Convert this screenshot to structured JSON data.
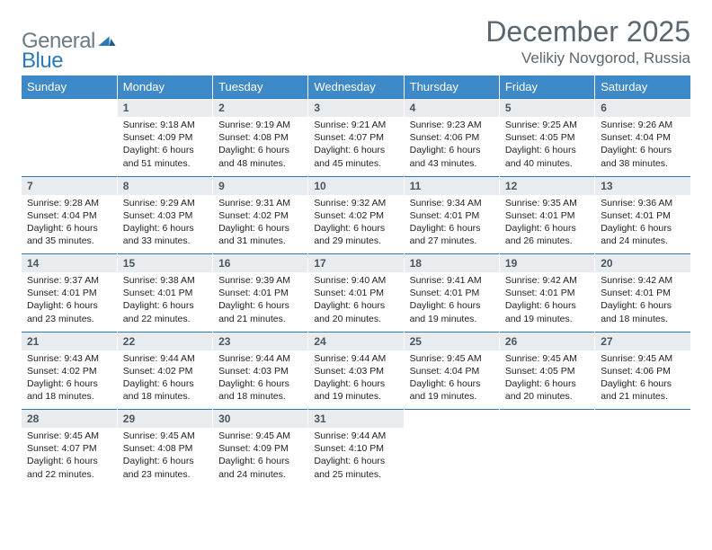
{
  "brand": {
    "general": "General",
    "blue": "Blue"
  },
  "title": "December 2025",
  "location": "Velikiy Novgorod, Russia",
  "colors": {
    "header_bg": "#3e8ac8",
    "header_text": "#ffffff",
    "rule": "#2a7ab9",
    "daynum_bg": "#e9ecef",
    "body_text": "#222222",
    "title_text": "#5a6670",
    "logo_gray": "#6b7a85",
    "logo_blue": "#2a7ab9"
  },
  "weekdays": [
    "Sunday",
    "Monday",
    "Tuesday",
    "Wednesday",
    "Thursday",
    "Friday",
    "Saturday"
  ],
  "weeks": [
    {
      "nums": [
        "",
        "1",
        "2",
        "3",
        "4",
        "5",
        "6"
      ],
      "cells": [
        null,
        {
          "sunrise": "Sunrise: 9:18 AM",
          "sunset": "Sunset: 4:09 PM",
          "d1": "Daylight: 6 hours",
          "d2": "and 51 minutes."
        },
        {
          "sunrise": "Sunrise: 9:19 AM",
          "sunset": "Sunset: 4:08 PM",
          "d1": "Daylight: 6 hours",
          "d2": "and 48 minutes."
        },
        {
          "sunrise": "Sunrise: 9:21 AM",
          "sunset": "Sunset: 4:07 PM",
          "d1": "Daylight: 6 hours",
          "d2": "and 45 minutes."
        },
        {
          "sunrise": "Sunrise: 9:23 AM",
          "sunset": "Sunset: 4:06 PM",
          "d1": "Daylight: 6 hours",
          "d2": "and 43 minutes."
        },
        {
          "sunrise": "Sunrise: 9:25 AM",
          "sunset": "Sunset: 4:05 PM",
          "d1": "Daylight: 6 hours",
          "d2": "and 40 minutes."
        },
        {
          "sunrise": "Sunrise: 9:26 AM",
          "sunset": "Sunset: 4:04 PM",
          "d1": "Daylight: 6 hours",
          "d2": "and 38 minutes."
        }
      ]
    },
    {
      "nums": [
        "7",
        "8",
        "9",
        "10",
        "11",
        "12",
        "13"
      ],
      "cells": [
        {
          "sunrise": "Sunrise: 9:28 AM",
          "sunset": "Sunset: 4:04 PM",
          "d1": "Daylight: 6 hours",
          "d2": "and 35 minutes."
        },
        {
          "sunrise": "Sunrise: 9:29 AM",
          "sunset": "Sunset: 4:03 PM",
          "d1": "Daylight: 6 hours",
          "d2": "and 33 minutes."
        },
        {
          "sunrise": "Sunrise: 9:31 AM",
          "sunset": "Sunset: 4:02 PM",
          "d1": "Daylight: 6 hours",
          "d2": "and 31 minutes."
        },
        {
          "sunrise": "Sunrise: 9:32 AM",
          "sunset": "Sunset: 4:02 PM",
          "d1": "Daylight: 6 hours",
          "d2": "and 29 minutes."
        },
        {
          "sunrise": "Sunrise: 9:34 AM",
          "sunset": "Sunset: 4:01 PM",
          "d1": "Daylight: 6 hours",
          "d2": "and 27 minutes."
        },
        {
          "sunrise": "Sunrise: 9:35 AM",
          "sunset": "Sunset: 4:01 PM",
          "d1": "Daylight: 6 hours",
          "d2": "and 26 minutes."
        },
        {
          "sunrise": "Sunrise: 9:36 AM",
          "sunset": "Sunset: 4:01 PM",
          "d1": "Daylight: 6 hours",
          "d2": "and 24 minutes."
        }
      ]
    },
    {
      "nums": [
        "14",
        "15",
        "16",
        "17",
        "18",
        "19",
        "20"
      ],
      "cells": [
        {
          "sunrise": "Sunrise: 9:37 AM",
          "sunset": "Sunset: 4:01 PM",
          "d1": "Daylight: 6 hours",
          "d2": "and 23 minutes."
        },
        {
          "sunrise": "Sunrise: 9:38 AM",
          "sunset": "Sunset: 4:01 PM",
          "d1": "Daylight: 6 hours",
          "d2": "and 22 minutes."
        },
        {
          "sunrise": "Sunrise: 9:39 AM",
          "sunset": "Sunset: 4:01 PM",
          "d1": "Daylight: 6 hours",
          "d2": "and 21 minutes."
        },
        {
          "sunrise": "Sunrise: 9:40 AM",
          "sunset": "Sunset: 4:01 PM",
          "d1": "Daylight: 6 hours",
          "d2": "and 20 minutes."
        },
        {
          "sunrise": "Sunrise: 9:41 AM",
          "sunset": "Sunset: 4:01 PM",
          "d1": "Daylight: 6 hours",
          "d2": "and 19 minutes."
        },
        {
          "sunrise": "Sunrise: 9:42 AM",
          "sunset": "Sunset: 4:01 PM",
          "d1": "Daylight: 6 hours",
          "d2": "and 19 minutes."
        },
        {
          "sunrise": "Sunrise: 9:42 AM",
          "sunset": "Sunset: 4:01 PM",
          "d1": "Daylight: 6 hours",
          "d2": "and 18 minutes."
        }
      ]
    },
    {
      "nums": [
        "21",
        "22",
        "23",
        "24",
        "25",
        "26",
        "27"
      ],
      "cells": [
        {
          "sunrise": "Sunrise: 9:43 AM",
          "sunset": "Sunset: 4:02 PM",
          "d1": "Daylight: 6 hours",
          "d2": "and 18 minutes."
        },
        {
          "sunrise": "Sunrise: 9:44 AM",
          "sunset": "Sunset: 4:02 PM",
          "d1": "Daylight: 6 hours",
          "d2": "and 18 minutes."
        },
        {
          "sunrise": "Sunrise: 9:44 AM",
          "sunset": "Sunset: 4:03 PM",
          "d1": "Daylight: 6 hours",
          "d2": "and 18 minutes."
        },
        {
          "sunrise": "Sunrise: 9:44 AM",
          "sunset": "Sunset: 4:03 PM",
          "d1": "Daylight: 6 hours",
          "d2": "and 19 minutes."
        },
        {
          "sunrise": "Sunrise: 9:45 AM",
          "sunset": "Sunset: 4:04 PM",
          "d1": "Daylight: 6 hours",
          "d2": "and 19 minutes."
        },
        {
          "sunrise": "Sunrise: 9:45 AM",
          "sunset": "Sunset: 4:05 PM",
          "d1": "Daylight: 6 hours",
          "d2": "and 20 minutes."
        },
        {
          "sunrise": "Sunrise: 9:45 AM",
          "sunset": "Sunset: 4:06 PM",
          "d1": "Daylight: 6 hours",
          "d2": "and 21 minutes."
        }
      ]
    },
    {
      "nums": [
        "28",
        "29",
        "30",
        "31",
        "",
        "",
        ""
      ],
      "cells": [
        {
          "sunrise": "Sunrise: 9:45 AM",
          "sunset": "Sunset: 4:07 PM",
          "d1": "Daylight: 6 hours",
          "d2": "and 22 minutes."
        },
        {
          "sunrise": "Sunrise: 9:45 AM",
          "sunset": "Sunset: 4:08 PM",
          "d1": "Daylight: 6 hours",
          "d2": "and 23 minutes."
        },
        {
          "sunrise": "Sunrise: 9:45 AM",
          "sunset": "Sunset: 4:09 PM",
          "d1": "Daylight: 6 hours",
          "d2": "and 24 minutes."
        },
        {
          "sunrise": "Sunrise: 9:44 AM",
          "sunset": "Sunset: 4:10 PM",
          "d1": "Daylight: 6 hours",
          "d2": "and 25 minutes."
        },
        null,
        null,
        null
      ]
    }
  ]
}
